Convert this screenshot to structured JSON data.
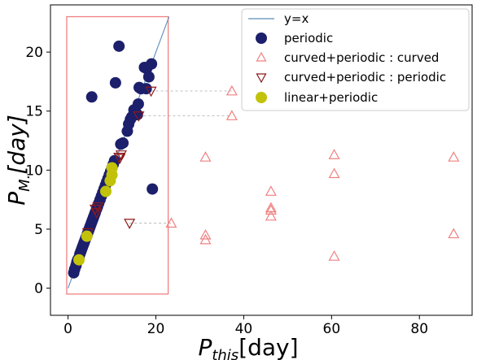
{
  "chart_data": {
    "type": "scatter",
    "xlabel": {
      "italic": "P",
      "sub": "this",
      "unit": "[day]"
    },
    "ylabel": {
      "italic": "P",
      "sub": "M.",
      "unit": "[day]"
    },
    "xlim": [
      -4,
      92
    ],
    "ylim": [
      -2.3,
      24
    ],
    "xticks": [
      0,
      20,
      40,
      60,
      80
    ],
    "yticks": [
      0,
      5,
      10,
      15,
      20
    ],
    "grid": false,
    "legend_position": "upper right",
    "colors": {
      "identity": "#5b8db8",
      "periodic": "#1c1f6b",
      "curved": "#f08080",
      "curved_periodic": "#8b1a1a",
      "linear": "#c2c20a",
      "box": "#f08080",
      "guide": "#aaaaaa"
    },
    "identity_line": {
      "name": "y=x",
      "from": [
        0,
        0
      ],
      "to": [
        23,
        23
      ]
    },
    "highlight_box": {
      "x": [
        -0.3,
        22.8
      ],
      "y": [
        -0.5,
        23
      ]
    },
    "series": [
      {
        "name": "periodic",
        "marker": "circle-filled",
        "points": [
          [
            1.3,
            1.3
          ],
          [
            1.5,
            1.6
          ],
          [
            1.8,
            1.9
          ],
          [
            2.0,
            2.2
          ],
          [
            2.2,
            2.4
          ],
          [
            2.5,
            2.6
          ],
          [
            2.7,
            2.9
          ],
          [
            2.9,
            3.1
          ],
          [
            3.1,
            3.3
          ],
          [
            3.3,
            3.5
          ],
          [
            3.5,
            3.7
          ],
          [
            3.7,
            3.9
          ],
          [
            3.9,
            4.1
          ],
          [
            4.1,
            4.3
          ],
          [
            4.4,
            4.6
          ],
          [
            4.6,
            4.8
          ],
          [
            4.8,
            5.0
          ],
          [
            5.0,
            5.2
          ],
          [
            5.2,
            5.4
          ],
          [
            5.4,
            5.6
          ],
          [
            5.6,
            5.8
          ],
          [
            5.8,
            6.0
          ],
          [
            6.0,
            6.2
          ],
          [
            6.2,
            6.4
          ],
          [
            6.5,
            6.7
          ],
          [
            6.7,
            6.9
          ],
          [
            7.0,
            7.2
          ],
          [
            7.3,
            7.5
          ],
          [
            7.6,
            7.8
          ],
          [
            7.9,
            8.1
          ],
          [
            8.2,
            8.4
          ],
          [
            8.5,
            8.7
          ],
          [
            8.8,
            9.0
          ],
          [
            9.1,
            9.3
          ],
          [
            9.4,
            9.6
          ],
          [
            9.7,
            9.9
          ],
          [
            10.0,
            10.2
          ],
          [
            10.3,
            10.5
          ],
          [
            10.6,
            10.8
          ],
          [
            12.0,
            12.2
          ],
          [
            12.5,
            12.3
          ],
          [
            13.5,
            13.3
          ],
          [
            13.8,
            13.9
          ],
          [
            14.2,
            14.3
          ],
          [
            14.5,
            14.5
          ],
          [
            15.0,
            15.1
          ],
          [
            15.4,
            14.9
          ],
          [
            15.8,
            14.7
          ],
          [
            16.2,
            17.0
          ],
          [
            16.6,
            16.9
          ],
          [
            17.4,
            18.7
          ],
          [
            17.9,
            18.6
          ],
          [
            18.4,
            17.9
          ],
          [
            19.0,
            19.0
          ],
          [
            17.8,
            16.9
          ],
          [
            16.0,
            15.6
          ],
          [
            11.6,
            20.5
          ],
          [
            10.8,
            17.4
          ],
          [
            5.4,
            16.2
          ],
          [
            19.2,
            8.4
          ]
        ]
      },
      {
        "name": "curved+periodic : curved",
        "marker": "triangle-up-open",
        "points": [
          [
            23.5,
            5.5
          ],
          [
            31.3,
            11.1
          ],
          [
            31.3,
            4.5
          ],
          [
            31.3,
            4.1
          ],
          [
            37.3,
            16.7
          ],
          [
            37.3,
            14.6
          ],
          [
            46.2,
            8.2
          ],
          [
            46.2,
            6.8
          ],
          [
            46.2,
            6.6
          ],
          [
            46.2,
            6.1
          ],
          [
            60.6,
            11.3
          ],
          [
            60.6,
            9.7
          ],
          [
            60.6,
            2.7
          ],
          [
            87.8,
            11.1
          ],
          [
            87.8,
            4.6
          ]
        ]
      },
      {
        "name": "curved+periodic : periodic",
        "marker": "triangle-down-open",
        "points": [
          [
            18.9,
            16.7
          ],
          [
            16.1,
            14.6
          ],
          [
            14.0,
            5.5
          ],
          [
            11.6,
            11.1
          ],
          [
            12.1,
            11.3
          ],
          [
            11.8,
            11.0
          ],
          [
            6.2,
            6.7
          ],
          [
            6.5,
            6.4
          ],
          [
            6.8,
            6.9
          ],
          [
            4.5,
            4.7
          ]
        ]
      },
      {
        "name": "linear+periodic",
        "marker": "circle-filled",
        "points": [
          [
            2.5,
            2.4
          ],
          [
            4.3,
            4.4
          ],
          [
            8.6,
            8.2
          ],
          [
            9.6,
            9.1
          ],
          [
            10.0,
            9.6
          ],
          [
            10.0,
            10.2
          ]
        ]
      }
    ],
    "guide_lines": [
      [
        [
          18.9,
          16.7
        ],
        [
          37.3,
          16.7
        ]
      ],
      [
        [
          16.1,
          14.6
        ],
        [
          37.3,
          14.6
        ]
      ],
      [
        [
          14.0,
          5.5
        ],
        [
          23.5,
          5.5
        ]
      ]
    ]
  }
}
